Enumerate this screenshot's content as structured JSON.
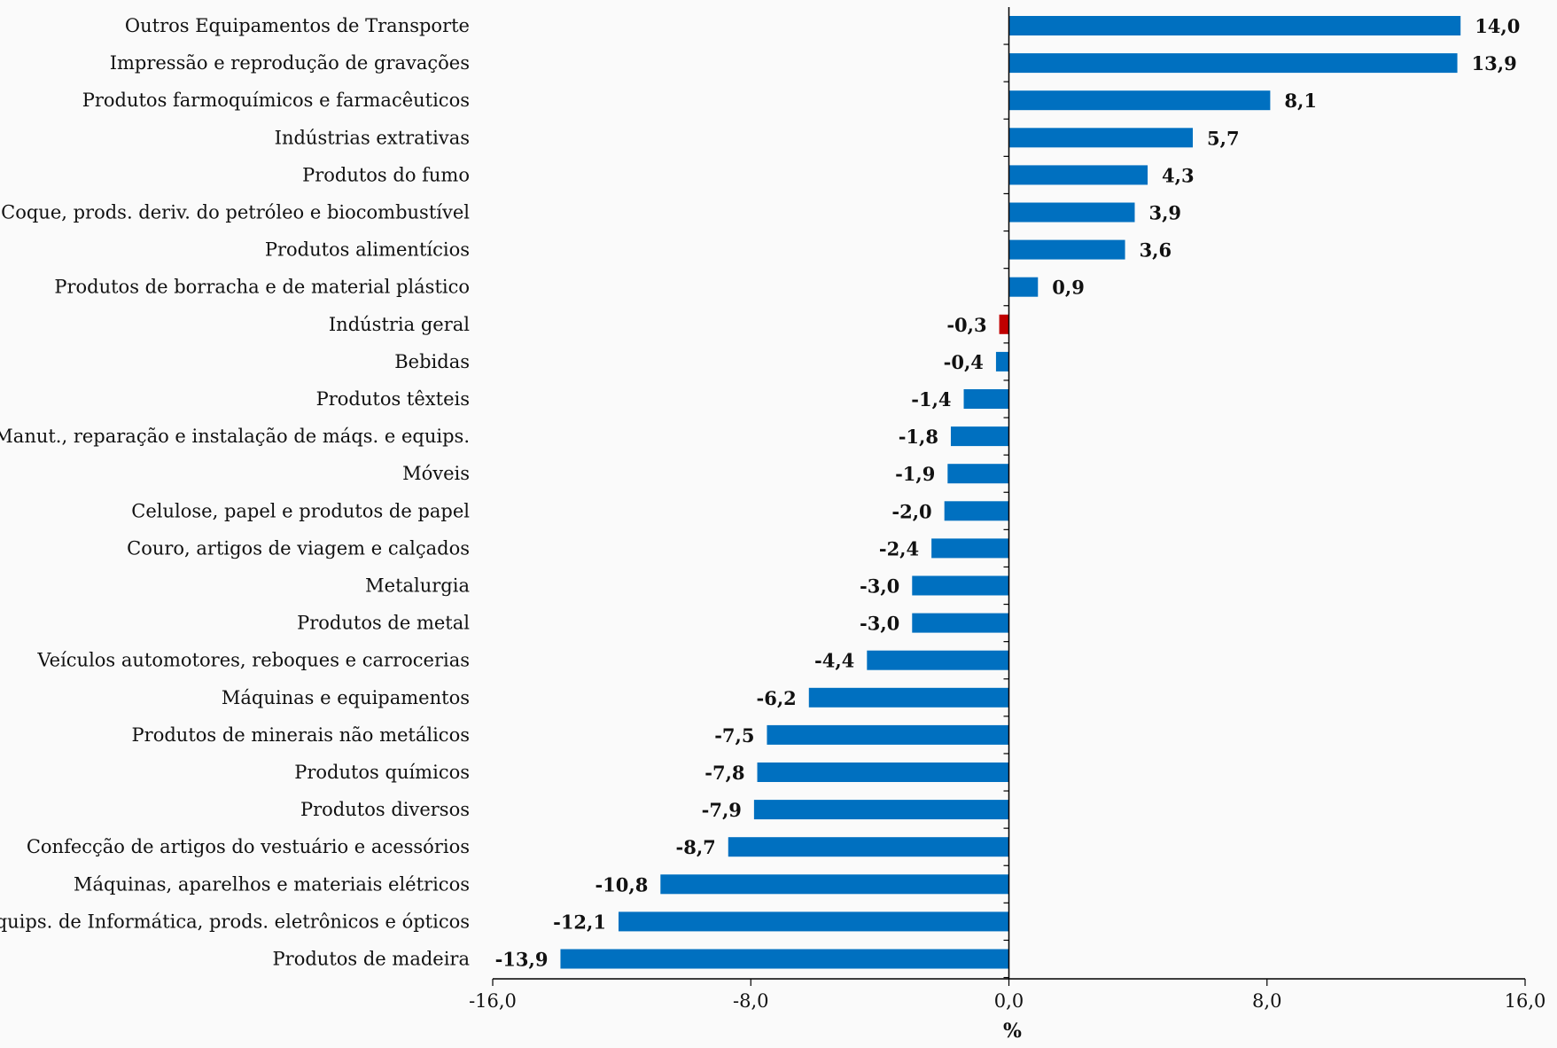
{
  "chart_data": {
    "type": "bar",
    "orientation": "horizontal",
    "categories": [
      "Outros Equipamentos de Transporte",
      "Impressão e reprodução de gravações",
      "Produtos farmoquímicos e farmacêuticos",
      "Indústrias extrativas",
      "Produtos do fumo",
      "Coque, prods. deriv. do petróleo e biocombustível",
      "Produtos alimentícios",
      "Produtos de borracha e de material plástico",
      "Indústria geral",
      "Bebidas",
      "Produtos têxteis",
      "Manut., reparação e instalação de máqs. e equips.",
      "Móveis",
      "Celulose, papel e produtos de papel",
      "Couro, artigos de viagem e calçados",
      "Metalurgia",
      "Produtos de metal",
      "Veículos automotores, reboques e carrocerias",
      "Máquinas e equipamentos",
      "Produtos de minerais não metálicos",
      "Produtos químicos",
      "Produtos diversos",
      "Confecção de artigos do vestuário e acessórios",
      "Máquinas, aparelhos e materiais elétricos",
      "Equips. de Informática, prods. eletrônicos e ópticos",
      "Produtos de madeira"
    ],
    "values": [
      14.0,
      13.9,
      8.1,
      5.7,
      4.3,
      3.9,
      3.6,
      0.9,
      -0.3,
      -0.4,
      -1.4,
      -1.8,
      -1.9,
      -2.0,
      -2.4,
      -3.0,
      -3.0,
      -4.4,
      -6.2,
      -7.5,
      -7.8,
      -7.9,
      -8.7,
      -10.8,
      -12.1,
      -13.9
    ],
    "value_labels": [
      "14,0",
      "13,9",
      "8,1",
      "5,7",
      "4,3",
      "3,9",
      "3,6",
      "0,9",
      "-0,3",
      "-0,4",
      "-1,4",
      "-1,8",
      "-1,9",
      "-2,0",
      "-2,4",
      "-3,0",
      "-3,0",
      "-4,4",
      "-6,2",
      "-7,5",
      "-7,8",
      "-7,9",
      "-8,7",
      "-10,8",
      "-12,1",
      "-13,9"
    ],
    "highlight_category": "Indústria geral",
    "colors": {
      "bar": "#0070c0",
      "highlight": "#c00000",
      "axis": "#000000",
      "background": "#fafafa"
    },
    "xlim": [
      -16,
      16
    ],
    "xticks": [
      -16,
      -8,
      0,
      8,
      16
    ],
    "xtick_labels": [
      "-16,0",
      "-8,0",
      "0,0",
      "8,0",
      "16,0"
    ],
    "xlabel": "%",
    "title": "",
    "grid": false,
    "legend": "none"
  }
}
